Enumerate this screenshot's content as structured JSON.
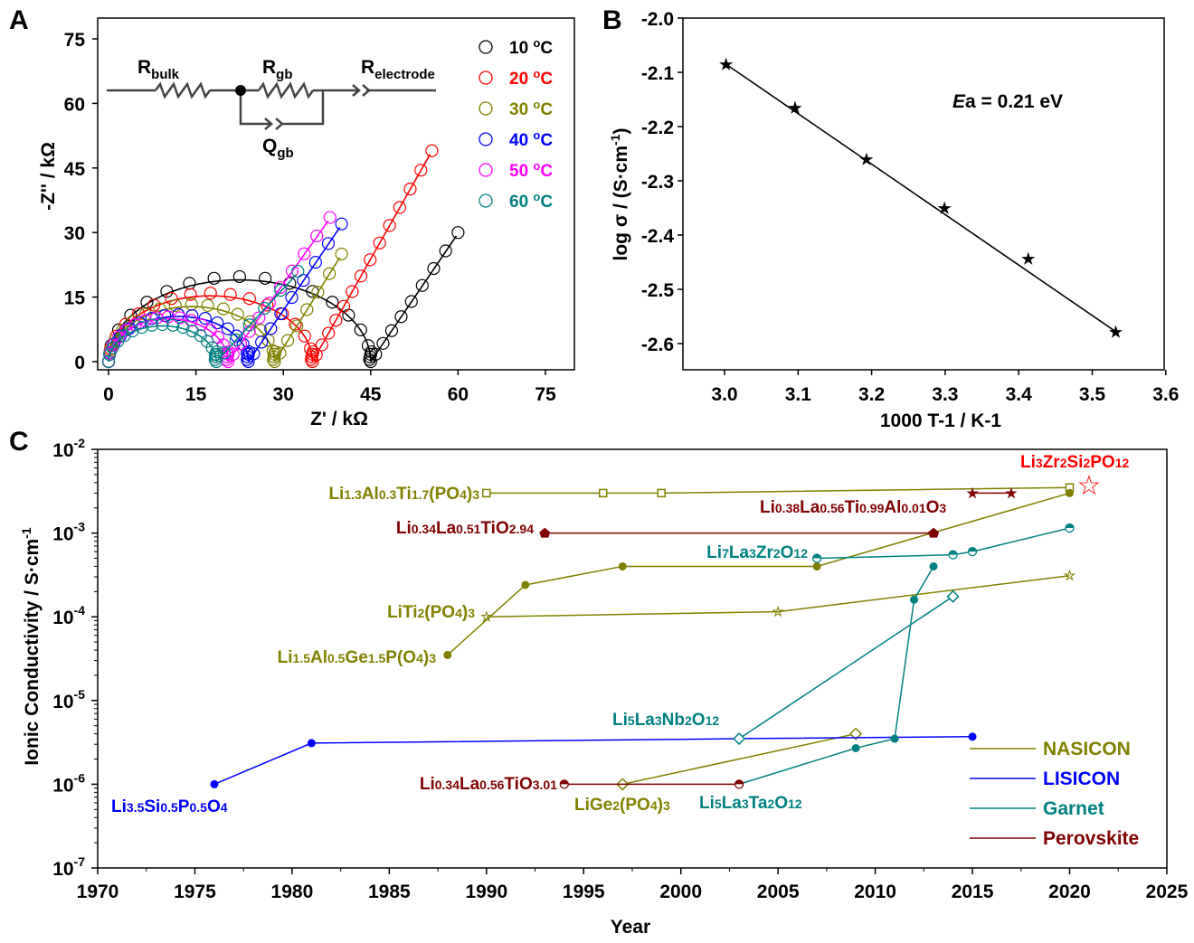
{
  "panels": {
    "a": "A",
    "b": "B",
    "c": "C"
  },
  "chart_data": [
    {
      "type": "scatter",
      "title": "",
      "xlabel": "Z' / kΩ",
      "ylabel": "-Z'' / kΩ",
      "xlim": [
        -1.5,
        80
      ],
      "ylim": [
        -1.5,
        80
      ],
      "xticks": [
        "0",
        "15",
        "30",
        "45",
        "60",
        "75"
      ],
      "yticks": [
        "0",
        "15",
        "30",
        "45",
        "60",
        "75"
      ],
      "legend_position": "top-right",
      "series": [
        {
          "name": "10 °C",
          "color": "#000000",
          "arc_end": 45,
          "arc_peak": 19,
          "tail_end": [
            60,
            30
          ]
        },
        {
          "name": "20 °C",
          "color": "#ff0000",
          "arc_end": 35,
          "arc_peak": 15.3,
          "tail_end": [
            55.5,
            49
          ]
        },
        {
          "name": "30 °C",
          "color": "#808000",
          "arc_end": 28.5,
          "arc_peak": 12.8,
          "tail_end": [
            40,
            25
          ]
        },
        {
          "name": "40 °C",
          "color": "#0000ff",
          "arc_end": 24,
          "arc_peak": 10.5,
          "tail_end": [
            40,
            32
          ]
        },
        {
          "name": "50 °C",
          "color": "#ff00ff",
          "arc_end": 20.5,
          "arc_peak": 10,
          "tail_end": [
            38,
            33.5
          ]
        },
        {
          "name": "60 °C",
          "color": "#008080",
          "arc_end": 18.5,
          "arc_peak": 8.3,
          "tail_end": [
            32.5,
            21
          ]
        }
      ],
      "inset_circuit": {
        "r_bulk": "R",
        "r_bulk_sub": "bulk",
        "r_gb": "R",
        "r_gb_sub": "gb",
        "r_electrode": "R",
        "r_electrode_sub": "electrode",
        "q_gb": "Q",
        "q_gb_sub": "gb"
      }
    },
    {
      "type": "line",
      "title": "",
      "xlabel": "1000 T-1 / K-1",
      "ylabel": "log σ / (S·cm-1)",
      "xlim": [
        2.95,
        3.6
      ],
      "ylim": [
        -2.66,
        -2.0
      ],
      "xticks": [
        "3.0",
        "3.1",
        "3.2",
        "3.3",
        "3.4",
        "3.5",
        "3.6"
      ],
      "yticks": [
        "-2.0",
        "-2.1",
        "-2.2",
        "-2.3",
        "-2.4",
        "-2.5",
        "-2.6"
      ],
      "x": [
        3.002,
        3.096,
        3.193,
        3.299,
        3.413,
        3.532
      ],
      "y": [
        -2.085,
        -2.165,
        -2.26,
        -2.35,
        -2.443,
        -2.578
      ],
      "annotation": {
        "italic": "E",
        "sub": "a",
        "rest": " = 0.21 eV"
      }
    },
    {
      "type": "line",
      "title": "",
      "xlabel": "Year",
      "ylabel": "Ionic Conductivity / S·cm-1",
      "xlim": [
        1970,
        2025
      ],
      "ylim": [
        1e-07,
        0.01
      ],
      "yscale": "log",
      "xticks": [
        "1970",
        "1975",
        "1980",
        "1985",
        "1990",
        "1995",
        "2000",
        "2005",
        "2010",
        "2015",
        "2020",
        "2025"
      ],
      "yticks": [
        "-2",
        "-3",
        "-4",
        "-5",
        "-6",
        "-7"
      ],
      "legend_position": "bottom-right",
      "legend": [
        {
          "name": "NASICON",
          "color": "#808000"
        },
        {
          "name": "LISICON",
          "color": "#0000ff"
        },
        {
          "name": "Garnet",
          "color": "#008080"
        },
        {
          "name": "Perovskite",
          "color": "#800000"
        }
      ],
      "series": [
        {
          "name": "Li1.3Al0.3Ti1.7(PO4)3",
          "family": "NASICON",
          "marker": "square",
          "x": [
            1990,
            1996,
            1999,
            2020
          ],
          "y": [
            0.003,
            0.003,
            0.003,
            0.0035
          ]
        },
        {
          "name": "Li1.5Al0.5Ge1.5P(O4)3",
          "family": "NASICON",
          "marker": "circle",
          "x": [
            1988,
            1992,
            1997,
            2007,
            2020
          ],
          "y": [
            3.5e-05,
            0.00024,
            0.0004,
            0.0004,
            0.003
          ]
        },
        {
          "name": "LiTi2(PO4)3",
          "family": "NASICON",
          "marker": "star-open",
          "x": [
            1990,
            2005,
            2020
          ],
          "y": [
            0.0001,
            0.000115,
            0.00031
          ]
        },
        {
          "name": "LiGe2(PO4)3",
          "family": "NASICON",
          "marker": "diamond",
          "x": [
            1997,
            2009
          ],
          "y": [
            1e-06,
            4e-06
          ]
        },
        {
          "name": "Li3.5Si0.5P0.5O4",
          "family": "LISICON",
          "marker": "circle",
          "x": [
            1976,
            1981,
            2003,
            2015
          ],
          "y": [
            1e-06,
            3.1e-06,
            3.5e-06,
            3.7e-06
          ]
        },
        {
          "name": "Li7La3Zr2O12",
          "family": "Garnet",
          "marker": "circle-half",
          "x": [
            2007,
            2014,
            2015,
            2020
          ],
          "y": [
            0.0005,
            0.00055,
            0.0006,
            0.00115
          ]
        },
        {
          "name": "Li5La3Nb2O12",
          "family": "Garnet",
          "marker": "diamond",
          "x": [
            2003,
            2014
          ],
          "y": [
            3.5e-06,
            0.000175
          ]
        },
        {
          "name": "Li5La3Ta2O12",
          "family": "Garnet",
          "marker": "circle",
          "x": [
            2003,
            2009,
            2011,
            2012,
            2013
          ],
          "y": [
            1e-06,
            2.7e-06,
            3.5e-06,
            0.00016,
            0.0004
          ]
        },
        {
          "name": "Li0.34La0.51TiO2.94",
          "family": "Perovskite",
          "marker": "pentagon",
          "x": [
            1993,
            2013
          ],
          "y": [
            0.001,
            0.001
          ]
        },
        {
          "name": "Li0.38La0.56Ti0.99Al0.01O3",
          "family": "Perovskite",
          "marker": "star",
          "x": [
            2015,
            2017
          ],
          "y": [
            0.003,
            0.003
          ]
        },
        {
          "name": "Li0.34La0.56TiO3.01",
          "family": "Perovskite",
          "marker": "circle-half",
          "x": [
            1994,
            2003
          ],
          "y": [
            1e-06,
            1e-06
          ]
        },
        {
          "name": "Li3Zr2Si2PO12",
          "family": "this",
          "marker": "star-open-large",
          "color": "#ff0000",
          "x": [
            2021
          ],
          "y": [
            0.0037
          ]
        }
      ]
    }
  ]
}
